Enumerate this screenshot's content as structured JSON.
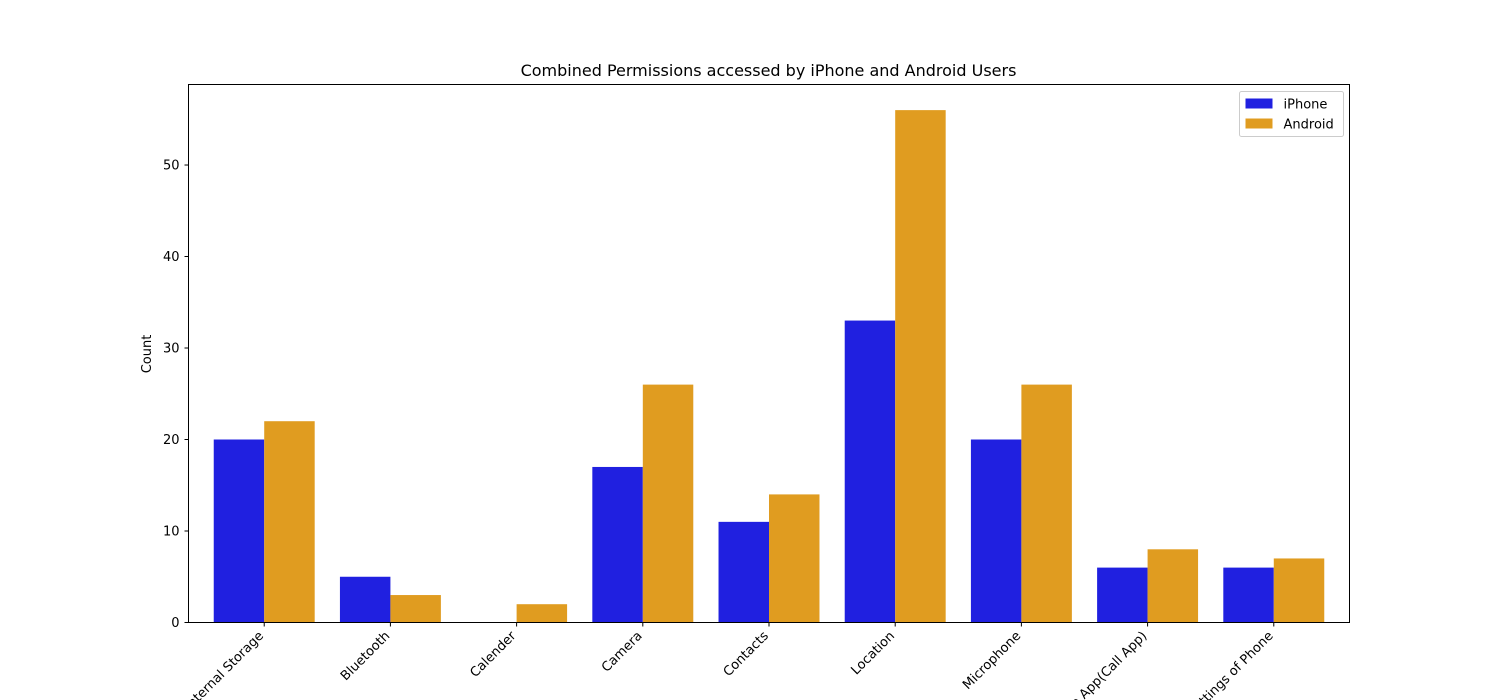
{
  "chart_data": {
    "type": "bar",
    "title": "Combined Permissions accessed by iPhone and Android Users",
    "xlabel": "",
    "ylabel": "Count",
    "categories": [
      "Internal Storage",
      "Bluetooth",
      "Calender",
      "Camera",
      "Contacts",
      "Location",
      "Microphone",
      "Phone App(Call App)",
      "Settings of Phone"
    ],
    "series": [
      {
        "name": "iPhone",
        "color": "#2020e0",
        "values": [
          20,
          5,
          0,
          17,
          11,
          33,
          20,
          6,
          6
        ]
      },
      {
        "name": "Android",
        "color": "#e09c20",
        "values": [
          22,
          3,
          2,
          26,
          14,
          56,
          26,
          8,
          7
        ]
      }
    ],
    "ylim": [
      0,
      58.8
    ],
    "yticks": [
      0,
      10,
      20,
      30,
      40,
      50
    ],
    "grid": false,
    "legend_position": "top-right"
  }
}
